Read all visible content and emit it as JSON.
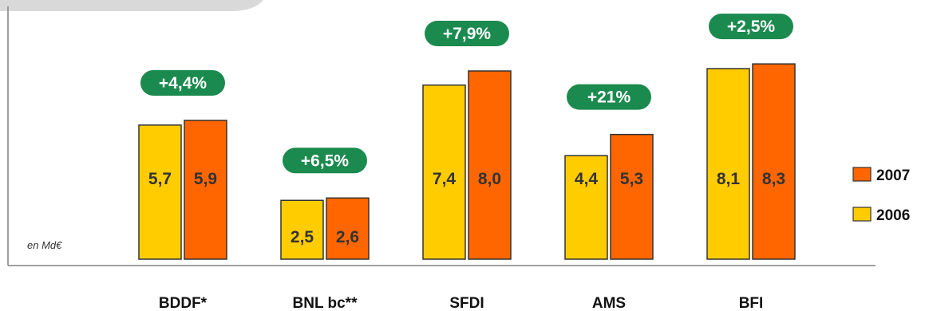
{
  "chart_data": {
    "type": "bar",
    "unit_note": "en Md€",
    "categories": [
      "BDDF*",
      "BNL bc**",
      "SFDI",
      "AMS",
      "BFI"
    ],
    "series": [
      {
        "name": "2006",
        "color": "#ffcc00",
        "values": [
          5.7,
          2.5,
          7.4,
          4.4,
          8.1
        ],
        "labels": [
          "5,7",
          "2,5",
          "7,4",
          "4,4",
          "8,1"
        ]
      },
      {
        "name": "2007",
        "color": "#ff6600",
        "values": [
          5.9,
          2.6,
          8.0,
          5.3,
          8.3
        ],
        "labels": [
          "5,9",
          "2,6",
          "8,0",
          "5,3",
          "8,3"
        ]
      }
    ],
    "growth": [
      "+4,4%",
      "+6,5%",
      "+7,9%",
      "+21%",
      "+2,5%"
    ],
    "growth_color": "#1b8a4e",
    "legend_order": [
      "2007",
      "2006"
    ],
    "legend_position": "right"
  }
}
